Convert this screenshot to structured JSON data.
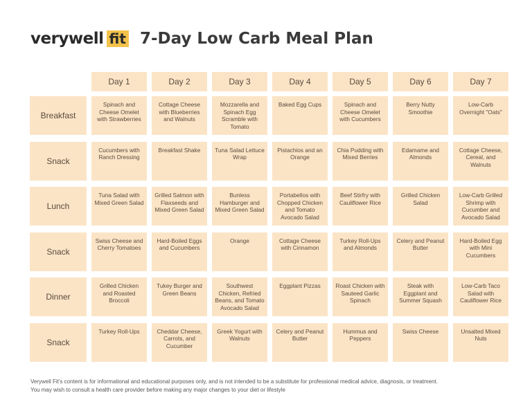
{
  "header": {
    "logo_word": "verywell",
    "logo_fit": "fit",
    "title": "7-Day Low Carb Meal Plan"
  },
  "days": [
    "Day 1",
    "Day 2",
    "Day 3",
    "Day 4",
    "Day 5",
    "Day 6",
    "Day 7"
  ],
  "meals": [
    {
      "label": "Breakfast",
      "items": [
        "Spinach and Cheese Omelet with Strawberries",
        "Cottage Cheese with Blueberries and Walnuts",
        "Mozzarella and Spinach Egg Scramble with Tomato",
        "Baked Egg Cups",
        "Spinach and Cheese Omelet with Cucumbers",
        "Berry Nutty Smoothie",
        "Low-Carb Overnight \"Oats\""
      ]
    },
    {
      "label": "Snack",
      "items": [
        "Cucumbers with Ranch Dressing",
        "Breakfast Shake",
        "Tuna Salad Lettuce Wrap",
        "Pistachios and an Orange",
        "Chia Pudding with Mixed Berries",
        "Edamame and Almonds",
        "Cottage Cheese, Cereal, and Walnuts"
      ]
    },
    {
      "label": "Lunch",
      "items": [
        "Tuna Salad with Mixed Green Salad",
        "Grilled Salmon with Flaxseeds and Mixed Green Salad",
        "Bunless Hamburger and Mixed Green Salad",
        "Portabellos with Chopped Chicken and Tomato Avocado Salad",
        "Beef Stirfry with Cauliflower Rice",
        "Grilled Chicken Salad",
        "Low-Carb Grilled Shrimp with Cucumber and Avocado Salad"
      ]
    },
    {
      "label": "Snack",
      "items": [
        "Swiss Cheese and Cherry Tomatoes",
        "Hard-Boiled Eggs and Cucumbers",
        "Orange",
        "Cottage Cheese with Cinnamon",
        "Turkey Roll-Ups and Almonds",
        "Celery and Peanut Butter",
        "Hard-Boiled Egg with Mini Cucumbers"
      ]
    },
    {
      "label": "Dinner",
      "items": [
        "Grilled Chicken and Roasted Broccoli",
        "Tukey Burger and Green Beans",
        "Southwest Chicken, Refried Beans, and Tomato Avocado Salad",
        "Eggplant Pizzas",
        "Roast Chicken with Sauteed Garlic Spinach",
        "Steak with Eggplant and Summer Squash",
        "Low-Carb Taco Salad with Cauliflower Rice"
      ]
    },
    {
      "label": "Snack",
      "items": [
        "Turkey Roll-Ups",
        "Cheddar Cheese, Carrots, and Cucumber",
        "Greek Yogurt with Walnuts",
        "Celery and Peanut Butter",
        "Hummus and Peppers",
        "Swiss Cheese",
        "Unsalted Mixed Nuts"
      ]
    }
  ],
  "footer": {
    "line1": "Verywell Fit's content is for informational and educational purposes only, and is not intended to be a substitute for professional medical advice, diagnosis, or treatment.",
    "line2": "You may wish to consult a health care provider before making any major changes to your diet or lifestyle"
  }
}
